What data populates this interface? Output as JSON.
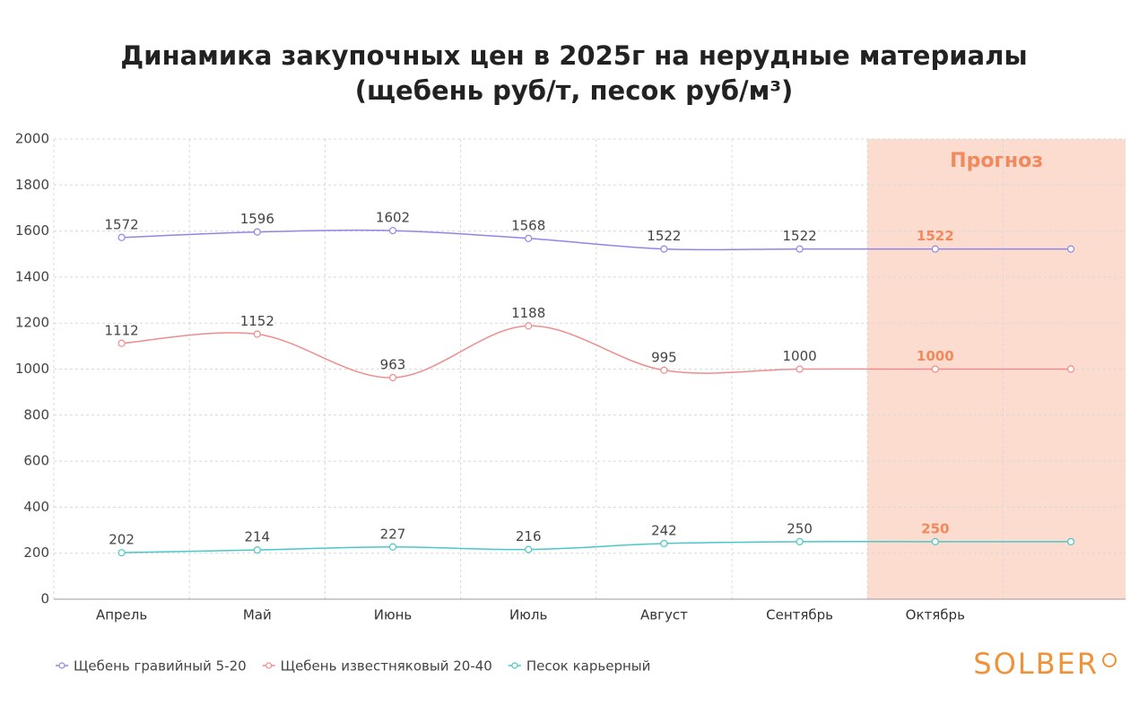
{
  "chart_data": {
    "type": "line",
    "title": "Динамика закупочных цен в 2025г на нерудные материалы",
    "subtitle": "(щебень руб/т, песок руб/м³)",
    "categories": [
      "Апрель",
      "Май",
      "Июнь",
      "Июль",
      "Август",
      "Сентябрь",
      "Октябрь",
      null
    ],
    "series": [
      {
        "name": "Щебень гравийный 5-20",
        "color": "#8f86e8",
        "values": [
          1572,
          1596,
          1602,
          1568,
          1522,
          1522,
          1522,
          1522
        ]
      },
      {
        "name": "Щебень известняковый 20-40",
        "color": "#f08c8c",
        "values": [
          1112,
          1152,
          963,
          1188,
          995,
          1000,
          1000,
          1000
        ]
      },
      {
        "name": "Песок карьерный",
        "color": "#4cc7c7",
        "values": [
          202,
          214,
          227,
          216,
          242,
          250,
          250,
          250
        ]
      }
    ],
    "ylim": [
      0,
      2000
    ],
    "yticks": [
      0,
      200,
      400,
      600,
      800,
      1000,
      1200,
      1400,
      1600,
      1800,
      2000
    ],
    "grid": true,
    "legend": "bottom-left",
    "annotations": [
      "Прогноз"
    ],
    "logo": "SOLBER"
  }
}
